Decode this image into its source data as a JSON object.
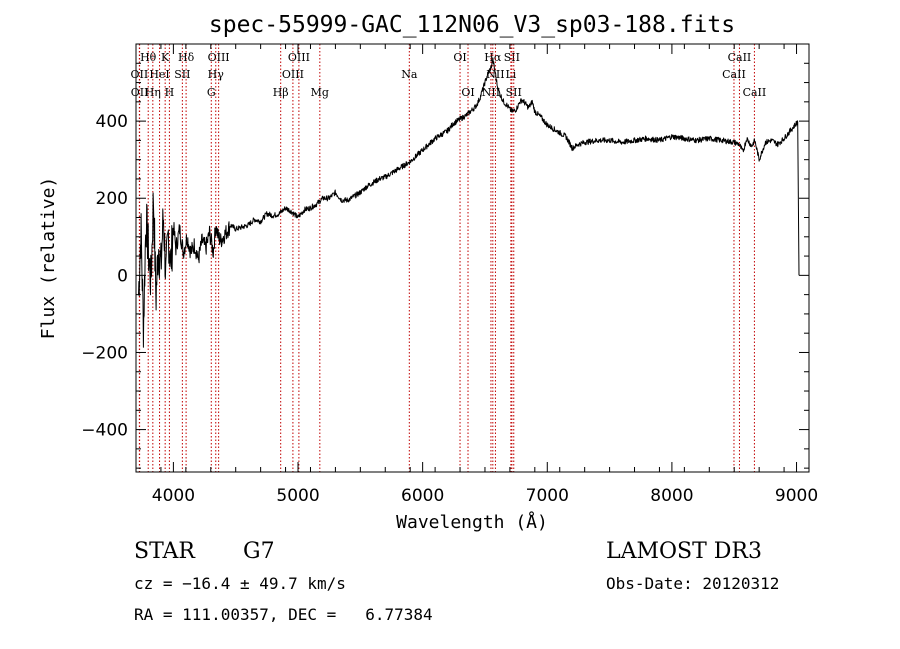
{
  "chart_data": {
    "type": "line",
    "title": "spec-55999-GAC_112N06_V3_sp03-188.fits",
    "xlabel": "Wavelength (Å)",
    "ylabel": "Flux (relative)",
    "xlim": [
      3700,
      9100
    ],
    "ylim": [
      -510,
      600
    ],
    "x_ticks": [
      4000,
      5000,
      6000,
      7000,
      8000,
      9000
    ],
    "x_tick_labels": [
      "4000",
      "5000",
      "6000",
      "7000",
      "8000",
      "9000"
    ],
    "y_ticks": [
      400,
      200,
      0,
      -200,
      -400
    ],
    "y_tick_labels": [
      "400",
      "200",
      "0",
      "−200",
      "−400"
    ],
    "line_color": "#000000",
    "marker_color": "#c00000",
    "series": [
      {
        "name": "flux",
        "x": [
          3720,
          3740,
          3760,
          3780,
          3800,
          3820,
          3840,
          3860,
          3880,
          3900,
          3920,
          3940,
          3960,
          3980,
          4000,
          4020,
          4050,
          4080,
          4110,
          4140,
          4170,
          4200,
          4230,
          4260,
          4290,
          4320,
          4340,
          4360,
          4380,
          4420,
          4460,
          4500,
          4550,
          4600,
          4650,
          4700,
          4750,
          4800,
          4850,
          4900,
          4950,
          5000,
          5050,
          5100,
          5150,
          5200,
          5250,
          5300,
          5350,
          5400,
          5450,
          5500,
          5550,
          5600,
          5650,
          5700,
          5750,
          5800,
          5850,
          5900,
          5950,
          6000,
          6050,
          6100,
          6150,
          6200,
          6250,
          6300,
          6350,
          6400,
          6430,
          6460,
          6490,
          6520,
          6550,
          6563,
          6580,
          6600,
          6620,
          6650,
          6680,
          6700,
          6720,
          6750,
          6780,
          6800,
          6850,
          6880,
          6900,
          6950,
          7000,
          7050,
          7100,
          7150,
          7200,
          7250,
          7300,
          7400,
          7500,
          7600,
          7700,
          7800,
          7900,
          8000,
          8100,
          8200,
          8300,
          8400,
          8500,
          8540,
          8570,
          8600,
          8640,
          8665,
          8700,
          8750,
          8800,
          8850,
          8900,
          8950,
          9000,
          9010,
          9020
        ],
        "values": [
          -50,
          120,
          -140,
          150,
          60,
          -20,
          210,
          -60,
          80,
          20,
          160,
          -10,
          110,
          30,
          130,
          70,
          120,
          60,
          100,
          60,
          80,
          40,
          90,
          70,
          110,
          60,
          130,
          100,
          90,
          110,
          130,
          120,
          125,
          130,
          145,
          140,
          160,
          155,
          160,
          175,
          165,
          150,
          170,
          175,
          185,
          200,
          200,
          215,
          195,
          195,
          205,
          215,
          230,
          240,
          250,
          255,
          265,
          275,
          285,
          295,
          310,
          325,
          340,
          355,
          365,
          375,
          395,
          405,
          415,
          430,
          440,
          460,
          490,
          520,
          540,
          560,
          530,
          490,
          470,
          450,
          440,
          430,
          425,
          430,
          450,
          455,
          435,
          450,
          425,
          410,
          390,
          380,
          370,
          360,
          330,
          340,
          345,
          350,
          350,
          345,
          350,
          355,
          350,
          360,
          355,
          350,
          355,
          350,
          345,
          340,
          320,
          355,
          335,
          350,
          300,
          345,
          350,
          340,
          355,
          375,
          395,
          400,
          0
        ]
      }
    ],
    "line_markers": [
      {
        "label": "Hθ",
        "wavelength": 3798,
        "row": 0
      },
      {
        "label": "K",
        "wavelength": 3934,
        "row": 0
      },
      {
        "label": "Hδ",
        "wavelength": 4102,
        "row": 0
      },
      {
        "label": "OIII",
        "wavelength": 4363,
        "row": 0
      },
      {
        "label": "OIII",
        "wavelength": 5007,
        "row": 0
      },
      {
        "label": "OI",
        "wavelength": 6300,
        "row": 0
      },
      {
        "label": "Hα",
        "wavelength": 6563,
        "row": 0
      },
      {
        "label": "SII",
        "wavelength": 6716,
        "row": 0
      },
      {
        "label": "CaII",
        "wavelength": 8542,
        "row": 0
      },
      {
        "label": "OII",
        "wavelength": 3727,
        "row": 1
      },
      {
        "label": "HeI",
        "wavelength": 3889,
        "row": 1
      },
      {
        "label": "SII",
        "wavelength": 4072,
        "row": 1
      },
      {
        "label": "Hγ",
        "wavelength": 4340,
        "row": 1
      },
      {
        "label": "OIII",
        "wavelength": 4959,
        "row": 1
      },
      {
        "label": "Na",
        "wavelength": 5893,
        "row": 1
      },
      {
        "label": "NII",
        "wavelength": 6584,
        "row": 1
      },
      {
        "label": "Li",
        "wavelength": 6708,
        "row": 1
      },
      {
        "label": "CaII",
        "wavelength": 8498,
        "row": 1
      },
      {
        "label": "OII",
        "wavelength": 3729,
        "row": 2
      },
      {
        "label": "Hη",
        "wavelength": 3835,
        "row": 2
      },
      {
        "label": "H",
        "wavelength": 3968,
        "row": 2
      },
      {
        "label": "G",
        "wavelength": 4304,
        "row": 2
      },
      {
        "label": "Hβ",
        "wavelength": 4861,
        "row": 2
      },
      {
        "label": "Mg",
        "wavelength": 5175,
        "row": 2
      },
      {
        "label": "OI",
        "wavelength": 6364,
        "row": 2
      },
      {
        "label": "NII",
        "wavelength": 6548,
        "row": 2
      },
      {
        "label": "SII",
        "wavelength": 6731,
        "row": 2
      },
      {
        "label": "CaII",
        "wavelength": 8662,
        "row": 2
      }
    ]
  },
  "info": {
    "class_label": "STAR",
    "subclass": "G7",
    "redshift": "cz = −16.4 ± 49.7 km/s",
    "coords": "RA = 111.00357, DEC =   6.77384",
    "survey": "LAMOST DR3",
    "obs_date": "Obs-Date: 20120312"
  }
}
